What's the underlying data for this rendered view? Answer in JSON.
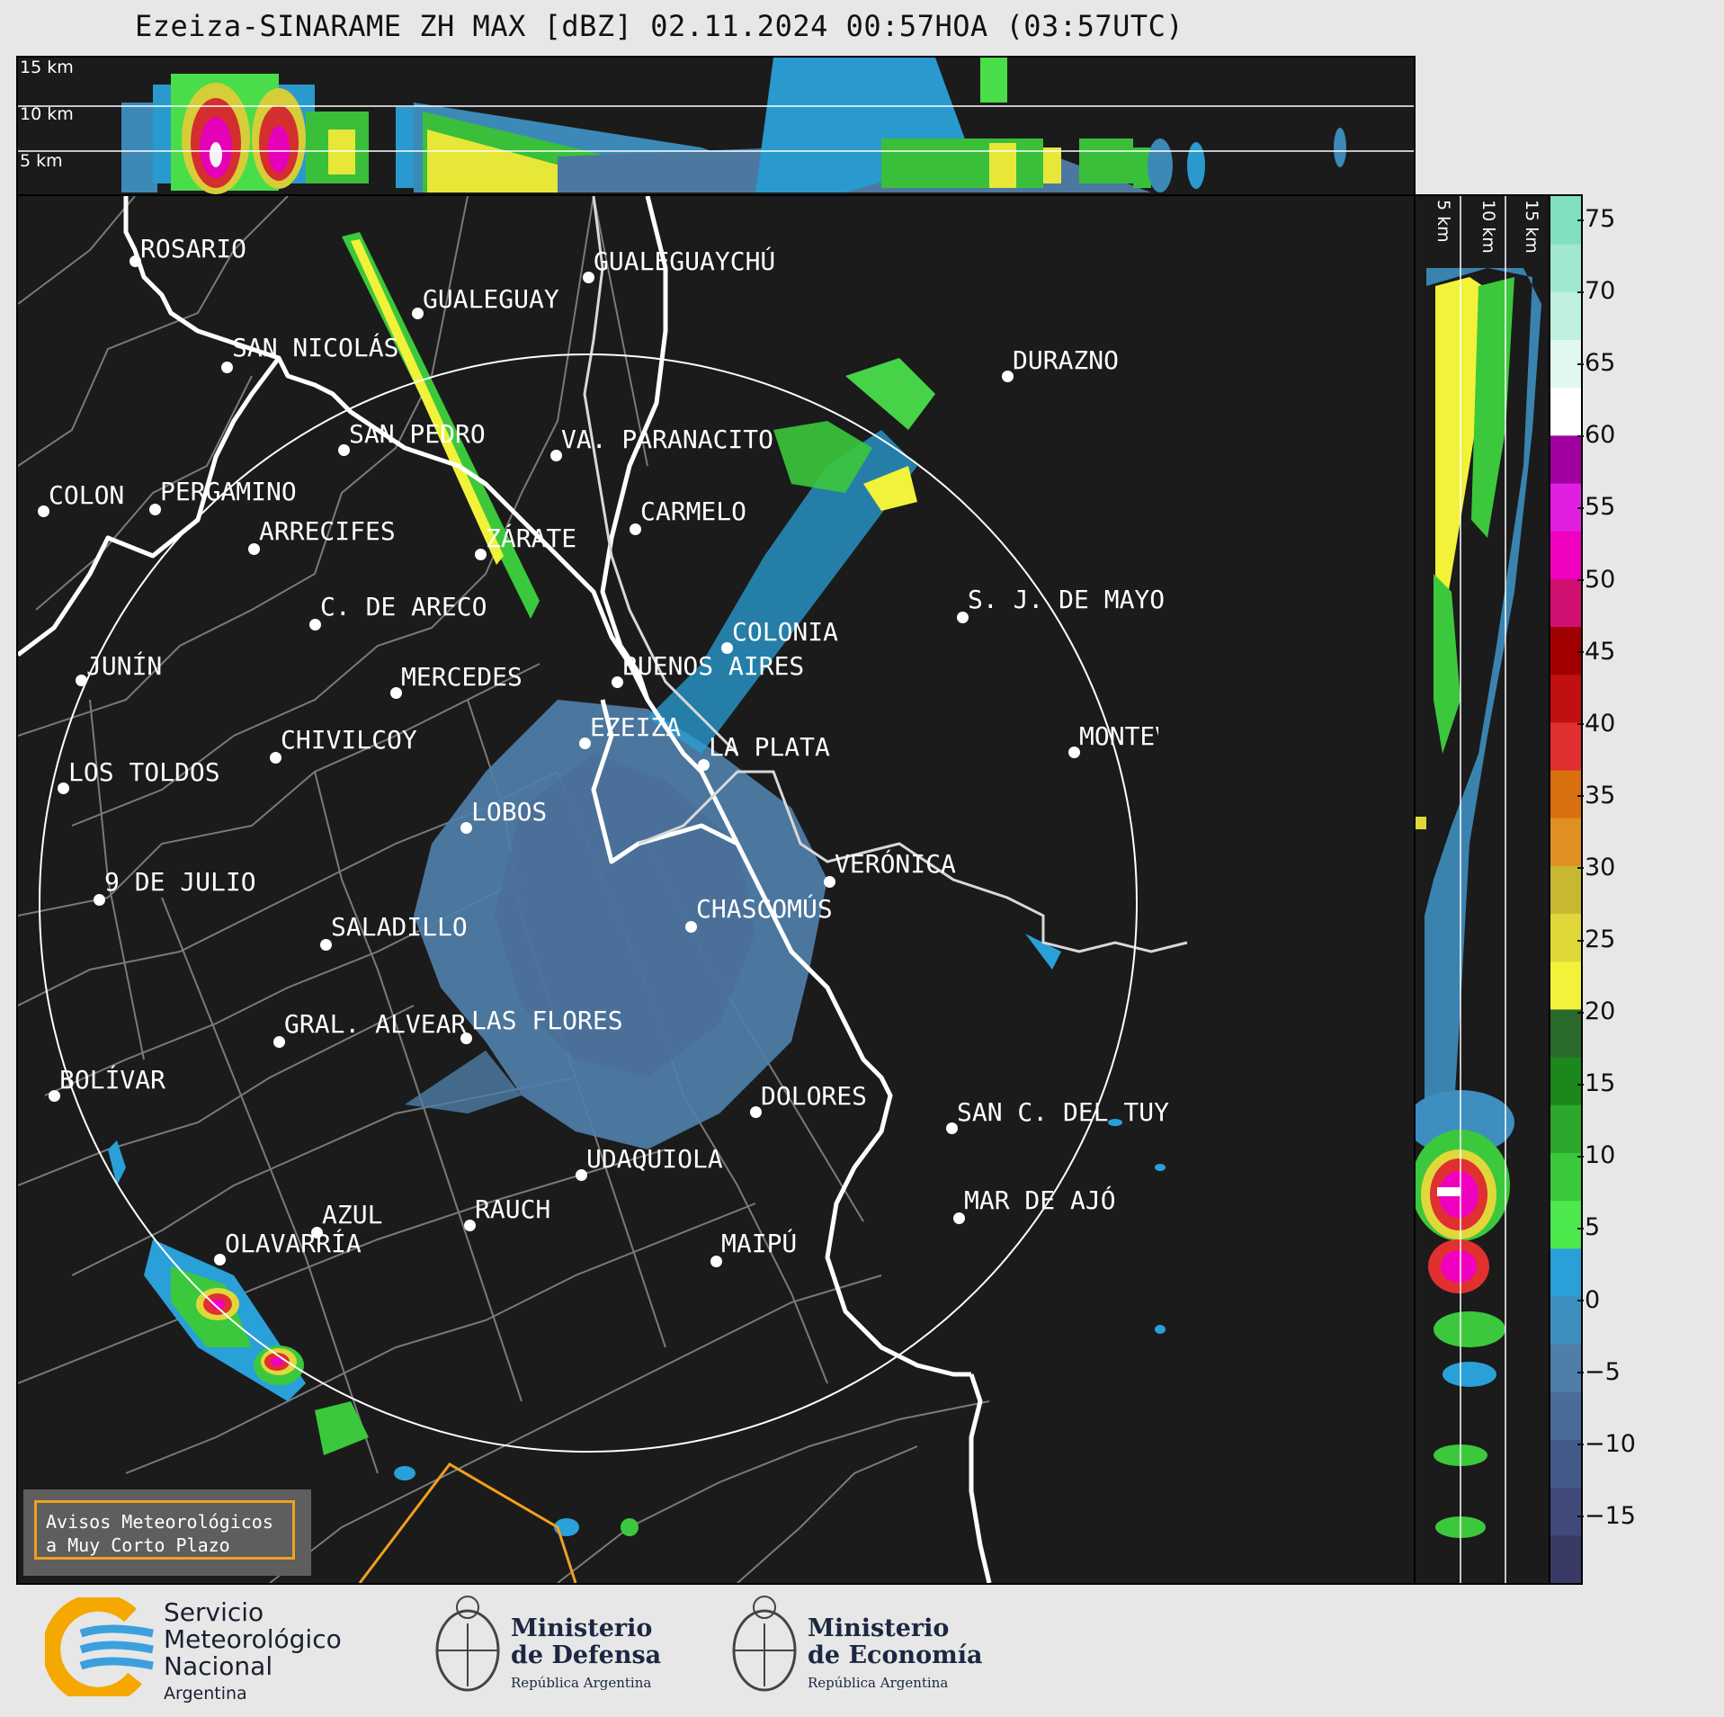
{
  "title": "Ezeiza-SINARAME ZH MAX [dBZ] 02.11.2024 00:57HOA (03:57UTC)",
  "height_labels": {
    "top": [
      "15 km",
      "10 km",
      "5 km"
    ],
    "side": [
      "5 km",
      "10 km",
      "15 km"
    ]
  },
  "colorbar": {
    "unit": "dBZ",
    "ticks": [
      "75",
      "70",
      "65",
      "60",
      "55",
      "50",
      "45",
      "40",
      "35",
      "30",
      "25",
      "20",
      "15",
      "10",
      "5",
      "0",
      "−5",
      "−10",
      "−15"
    ],
    "colors": [
      "#3a3a66",
      "#3f4a78",
      "#435a88",
      "#4a6c98",
      "#4f7ea8",
      "#3e8fc0",
      "#2aa0d8",
      "#4ce84c",
      "#3cc83c",
      "#2ca82c",
      "#1c881c",
      "#2a6a2a",
      "#f2f23a",
      "#e0d83a",
      "#c8b830",
      "#e09020",
      "#d87010",
      "#e03030",
      "#c01010",
      "#a00000",
      "#d01070",
      "#f000c0",
      "#e020e0",
      "#a000a0",
      "#ffffff",
      "#e0f8f0",
      "#c0f0e0",
      "#a0e8d0",
      "#80e0c0"
    ]
  },
  "cities": [
    {
      "name": "ROSARIO"
    },
    {
      "name": "GUALEGUAYCHÚ"
    },
    {
      "name": "GUALEGUAY"
    },
    {
      "name": "SAN NICOLÁS"
    },
    {
      "name": "DURAZNO"
    },
    {
      "name": "SAN PEDRO"
    },
    {
      "name": "VA. PARANACITO"
    },
    {
      "name": "COLON"
    },
    {
      "name": "PERGAMINO"
    },
    {
      "name": "CARMELO"
    },
    {
      "name": "ARRECIFES"
    },
    {
      "name": "ZÁRATE"
    },
    {
      "name": "S. J. DE MAYO"
    },
    {
      "name": "C. DE ARECO"
    },
    {
      "name": "COLONIA"
    },
    {
      "name": "JUNÍN"
    },
    {
      "name": "BUENOS AIRES"
    },
    {
      "name": "MERCEDES"
    },
    {
      "name": "MONTEVIDEO"
    },
    {
      "name": "EZEIZA"
    },
    {
      "name": "CHIVILCOY"
    },
    {
      "name": "LA PLATA"
    },
    {
      "name": "LOS TOLDOS"
    },
    {
      "name": "LOBOS"
    },
    {
      "name": "VERÓNICA"
    },
    {
      "name": "9 DE JULIO"
    },
    {
      "name": "CHASCOMÚS"
    },
    {
      "name": "SALADILLO"
    },
    {
      "name": "GRAL. ALVEAR"
    },
    {
      "name": "LAS FLORES"
    },
    {
      "name": "BOLÍVAR"
    },
    {
      "name": "DOLORES"
    },
    {
      "name": "SAN C. DEL TUYÚ"
    },
    {
      "name": "UDAQUIOLA"
    },
    {
      "name": "MAR DE AJÓ"
    },
    {
      "name": "AZUL"
    },
    {
      "name": "RAUCH"
    },
    {
      "name": "OLAVARRÍA"
    },
    {
      "name": "MAIPÚ"
    }
  ],
  "avisos": {
    "line1": "Avisos Meteorológicos",
    "line2": "a Muy Corto Plazo"
  },
  "footer": {
    "smn": {
      "line1": "Servicio",
      "line2": "Meteorológico",
      "line3": "Nacional",
      "line4": "Argentina"
    },
    "defensa": {
      "line1": "Ministerio",
      "line2": "de Defensa",
      "line3": "República Argentina"
    },
    "economia": {
      "line1": "Ministerio",
      "line2": "de Economía",
      "line3": "República Argentina"
    }
  }
}
